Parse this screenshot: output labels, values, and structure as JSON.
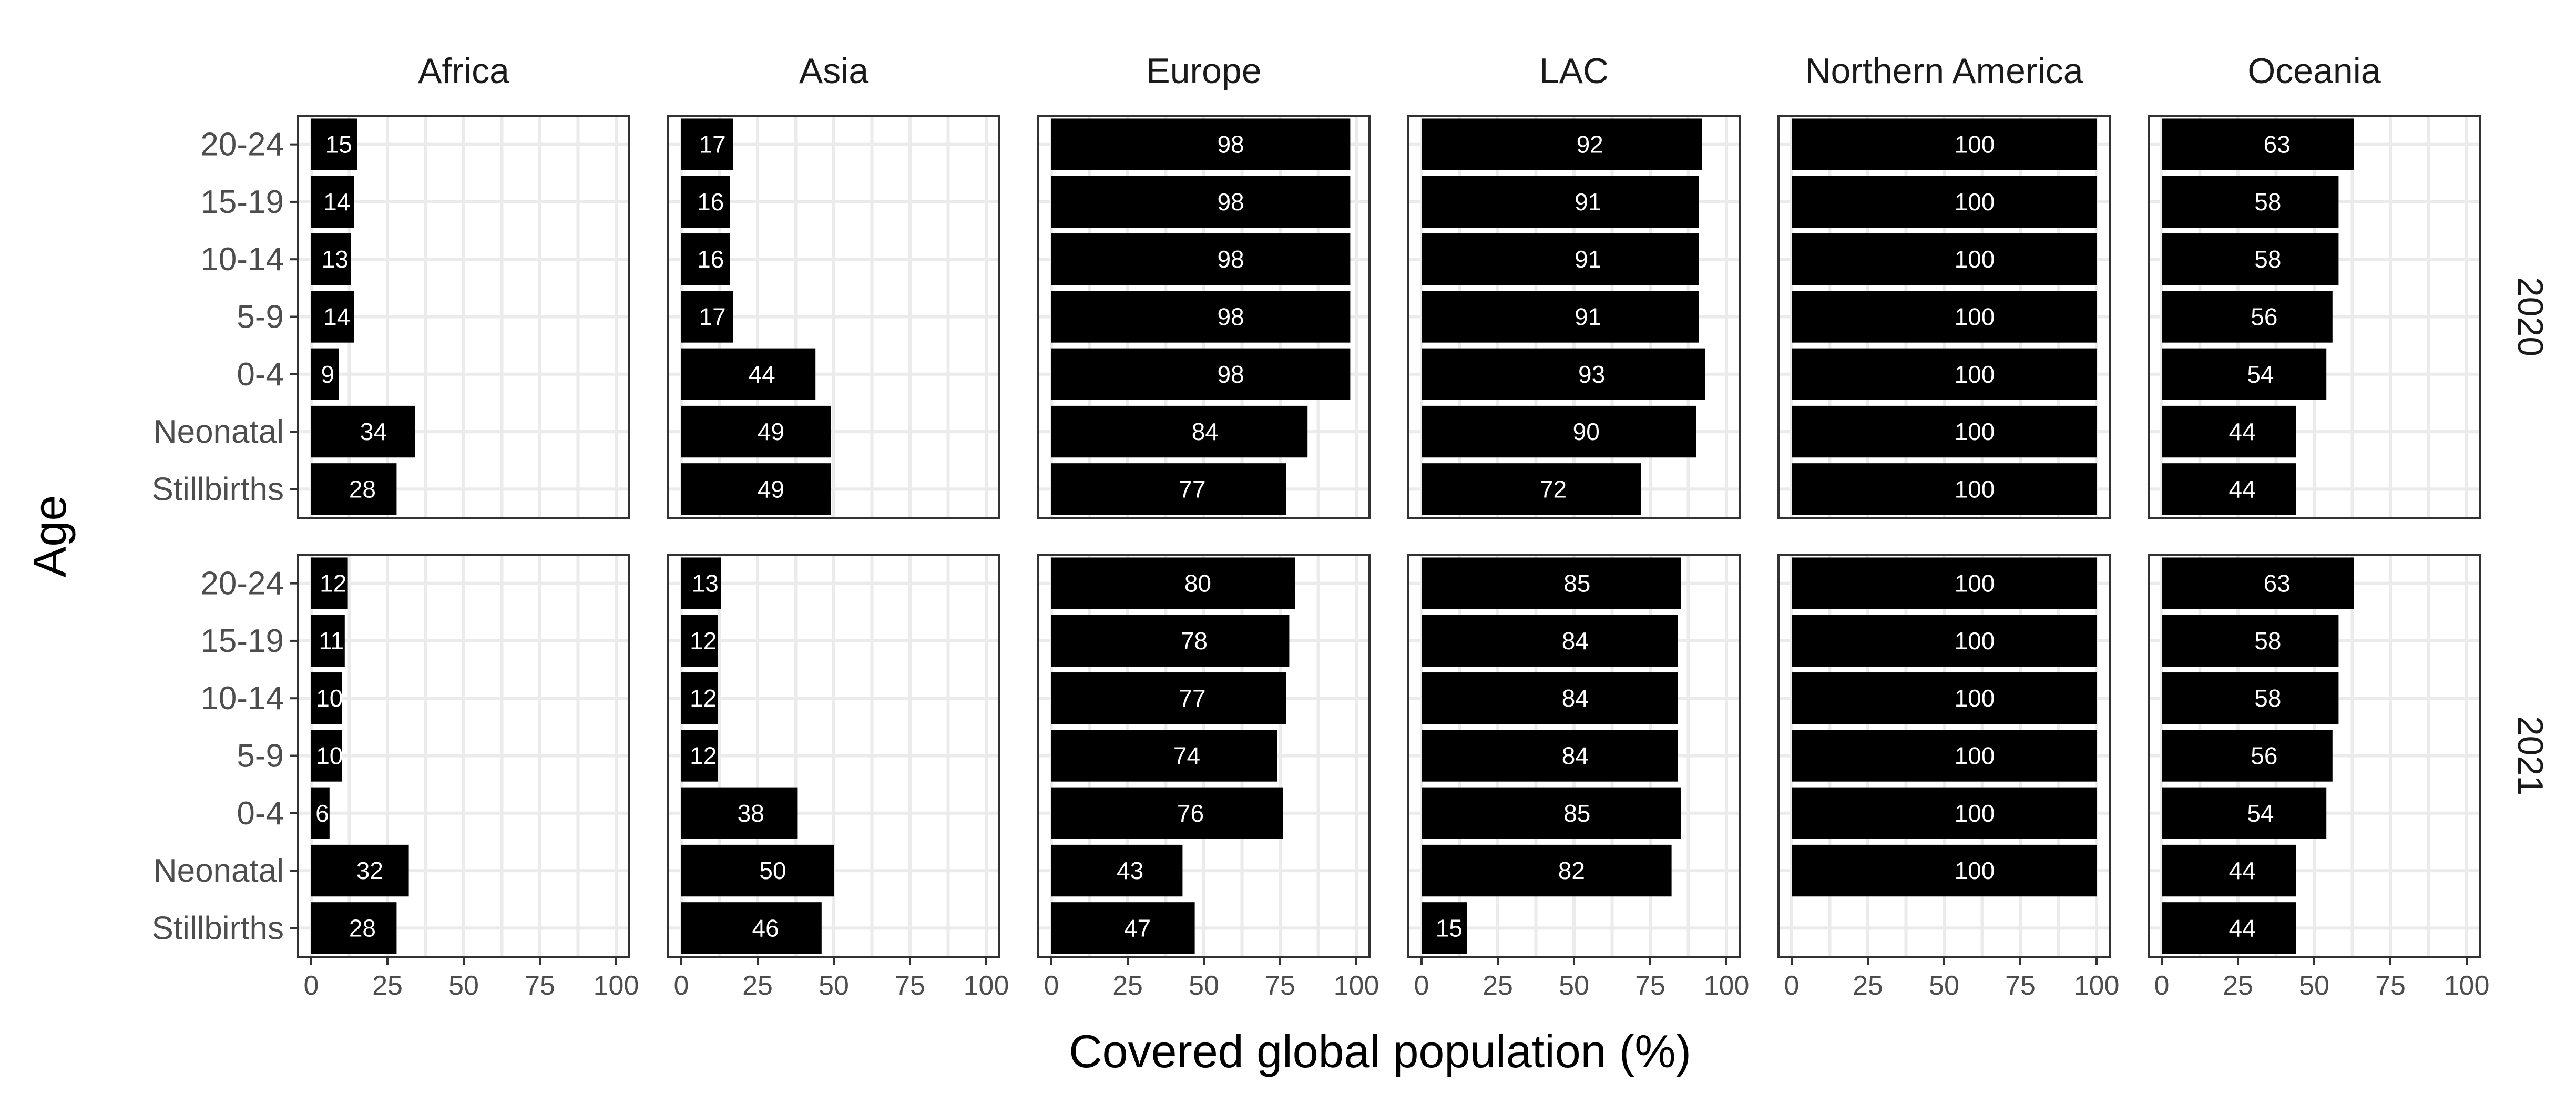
{
  "chart_data": {
    "type": "bar",
    "orientation": "horizontal",
    "facet_columns": [
      "Africa",
      "Asia",
      "Europe",
      "LAC",
      "Northern America",
      "Oceania"
    ],
    "facet_rows": [
      "2020",
      "2021"
    ],
    "categories": [
      "Stillbirths",
      "Neonatal",
      "0-4",
      "5-9",
      "10-14",
      "15-19",
      "20-24"
    ],
    "xlabel": "Covered global population (%)",
    "ylabel": "Age",
    "xlim": [
      0,
      100
    ],
    "xticks": [
      "0",
      "25",
      "50",
      "75",
      "100"
    ],
    "grid": true,
    "bar_color": "#000000",
    "label_color": "#ffffff",
    "panels": [
      {
        "region": "Africa",
        "year": "2020",
        "values": [
          28,
          34,
          9,
          14,
          13,
          14,
          15
        ]
      },
      {
        "region": "Asia",
        "year": "2020",
        "values": [
          49,
          49,
          44,
          17,
          16,
          16,
          17
        ]
      },
      {
        "region": "Europe",
        "year": "2020",
        "values": [
          77,
          84,
          98,
          98,
          98,
          98,
          98
        ]
      },
      {
        "region": "LAC",
        "year": "2020",
        "values": [
          72,
          90,
          93,
          91,
          91,
          91,
          92
        ]
      },
      {
        "region": "Northern America",
        "year": "2020",
        "values": [
          100,
          100,
          100,
          100,
          100,
          100,
          100
        ]
      },
      {
        "region": "Oceania",
        "year": "2020",
        "values": [
          44,
          44,
          54,
          56,
          58,
          58,
          63
        ]
      },
      {
        "region": "Africa",
        "year": "2021",
        "values": [
          28,
          32,
          6,
          10,
          10,
          11,
          12
        ]
      },
      {
        "region": "Asia",
        "year": "2021",
        "values": [
          46,
          50,
          38,
          12,
          12,
          12,
          13
        ]
      },
      {
        "region": "Europe",
        "year": "2021",
        "values": [
          47,
          43,
          76,
          74,
          77,
          78,
          80
        ]
      },
      {
        "region": "LAC",
        "year": "2021",
        "values": [
          15,
          82,
          85,
          84,
          84,
          84,
          85
        ]
      },
      {
        "region": "Northern America",
        "year": "2021",
        "values": [
          null,
          100,
          100,
          100,
          100,
          100,
          100
        ]
      },
      {
        "region": "Oceania",
        "year": "2021",
        "values": [
          44,
          44,
          54,
          56,
          58,
          58,
          63
        ]
      }
    ]
  }
}
